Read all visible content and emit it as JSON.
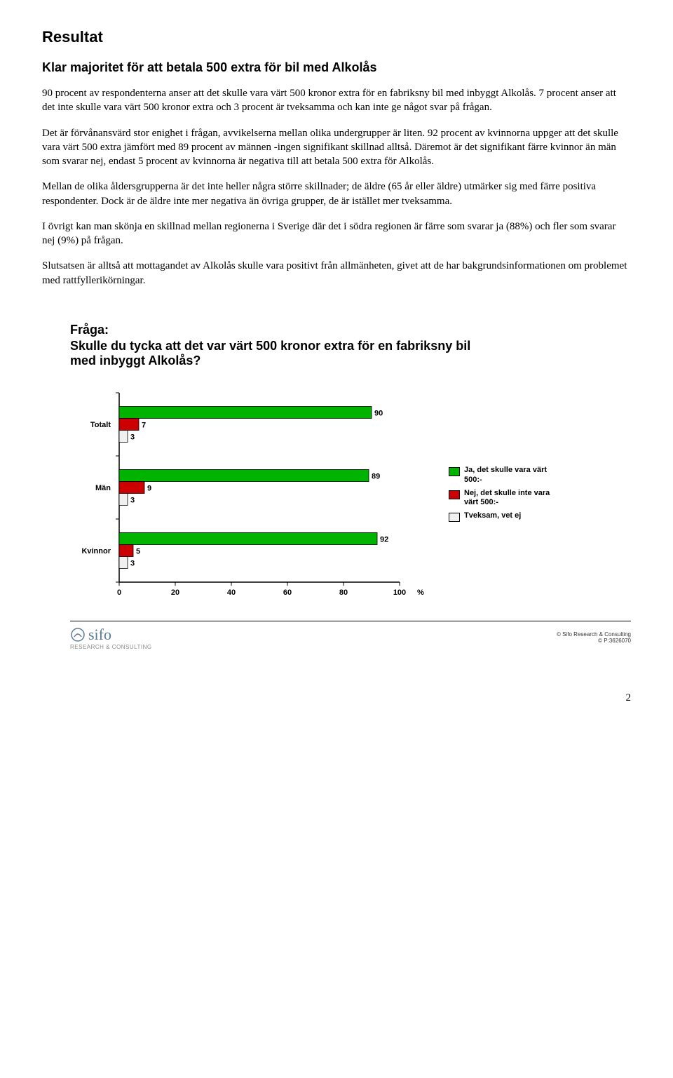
{
  "heading": "Resultat",
  "subheading": "Klar majoritet för att betala 500 extra för bil med Alkolås",
  "paragraphs": [
    "90 procent av respondenterna anser att det skulle vara värt 500 kronor extra för en fabriksny bil med inbyggt Alkolås. 7 procent anser att det inte skulle vara värt 500 kronor extra och 3 procent är tveksamma och kan inte ge något svar på frågan.",
    "Det är förvånansvärd stor enighet i frågan, avvikelserna mellan olika undergrupper är liten. 92 procent av kvinnorna uppger att det skulle vara värt 500 extra jämfört med 89 procent av männen -ingen signifikant skillnad alltså. Däremot är det signifikant färre kvinnor än män som svarar nej, endast 5 procent av kvinnorna är negativa till att betala 500 extra för Alkolås.",
    "Mellan de olika åldersgrupperna är det inte heller några större skillnader; de äldre (65 år eller äldre) utmärker sig med färre positiva respondenter. Dock är de äldre inte mer negativa än övriga grupper, de är istället mer tveksamma.",
    "I övrigt kan man skönja en skillnad mellan regionerna i Sverige där det i södra regionen är färre som svarar ja (88%) och fler som svarar nej (9%) på frågan.",
    "Slutsatsen är alltså att mottagandet av Alkolås skulle vara positivt från allmänheten, givet att de har bakgrundsinformationen om problemet med rattfyllerikörningar."
  ],
  "chart": {
    "title_label": "Fråga:",
    "title_text": "Skulle du tycka att det var värt 500 kronor extra för en fabriksny bil med inbyggt Alkolås?",
    "type": "bar",
    "categories": [
      "Totalt",
      "Män",
      "Kvinnor"
    ],
    "series": [
      {
        "name": "Ja, det skulle vara värt 500:-",
        "color": "#00b300",
        "values": [
          90,
          89,
          92
        ]
      },
      {
        "name": "Nej, det skulle inte vara värt 500:-",
        "color": "#cc0000",
        "values": [
          7,
          9,
          5
        ]
      },
      {
        "name": "Tveksam, vet ej",
        "color": "#f0f0f0",
        "values": [
          3,
          3,
          3
        ]
      }
    ],
    "xlim": [
      0,
      100
    ],
    "xtick_step": 20,
    "x_unit": "%",
    "bar_border": "#000000",
    "frame_border": "#000000",
    "grid_color": "#000000",
    "label_fontsize": 11,
    "label_fontweight": "bold",
    "background_color": "#ffffff"
  },
  "footer": {
    "logo_text": "sifo",
    "logo_sub": "RESEARCH & CONSULTING",
    "copyright_line1": "© Sifo Research & Consulting",
    "copyright_line2": "© P:3626070"
  },
  "page_number": "2"
}
